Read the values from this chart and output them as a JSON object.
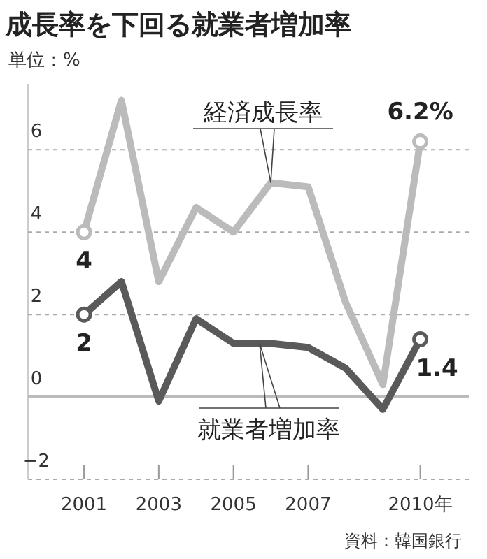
{
  "chart_data": {
    "type": "line",
    "title": "成長率を下回る就業者増加率",
    "subtitle": "単位：%",
    "annotations": [
      "資料：韓国銀行"
    ],
    "x": [
      2001,
      2002,
      2003,
      2004,
      2005,
      2006,
      2007,
      2008,
      2009,
      2010
    ],
    "series": [
      {
        "name": "経済成長率",
        "color": "#bbbbbb",
        "values": [
          4.0,
          7.2,
          2.8,
          4.6,
          4.0,
          5.2,
          5.1,
          2.3,
          0.3,
          6.2
        ],
        "value_labels": [
          "4",
          null,
          null,
          null,
          null,
          null,
          null,
          null,
          null,
          "6.2%"
        ]
      },
      {
        "name": "就業者増加率",
        "color": "#5a5a5a",
        "values": [
          2.0,
          2.8,
          -0.1,
          1.9,
          1.3,
          1.3,
          1.2,
          0.7,
          -0.3,
          1.4
        ],
        "value_labels": [
          "2",
          null,
          null,
          null,
          null,
          null,
          null,
          null,
          null,
          "1.4"
        ]
      }
    ],
    "xlim": [
      1999.5,
      2011.3
    ],
    "xticks": [
      2001,
      2003,
      2005,
      2007,
      {
        "value": 2010,
        "label": "2010年"
      }
    ],
    "ylim": [
      -2,
      7.6
    ],
    "yticks": [
      -2,
      0,
      2,
      4,
      6
    ],
    "ref_lines": [
      {
        "axis": "y",
        "value": 0,
        "color": "#bbbbbb"
      }
    ],
    "grid": "y",
    "line_style": "solid"
  }
}
